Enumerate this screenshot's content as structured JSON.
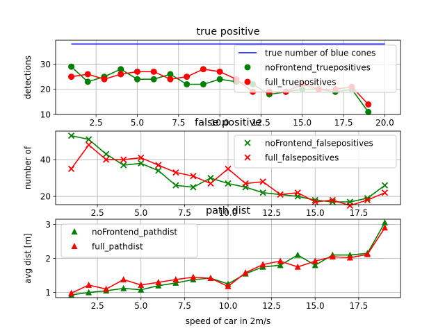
{
  "figure": {
    "xlabel": "speed of car in 2m/s"
  },
  "chart_data": [
    {
      "type": "line",
      "title": "true positive",
      "xlabel": "",
      "ylabel": "detections",
      "xlim": [
        0.05,
        20.95
      ],
      "ylim": [
        10,
        39.5
      ],
      "xticks": [
        2.5,
        5.0,
        7.5,
        10.0,
        12.5,
        15.0,
        17.5,
        20.0
      ],
      "xtick_labels": [
        "2.5",
        "5.0",
        "7.5",
        "10.0",
        "12.5",
        "15.0",
        "17.5",
        "20.0"
      ],
      "yticks": [
        10,
        20,
        30
      ],
      "ytick_labels": [
        "10",
        "20",
        "30"
      ],
      "grid": true,
      "legend": "top-right",
      "series": [
        {
          "name": "true number of blue cones",
          "color": "#0000ff",
          "marker": "none",
          "x": [
            1,
            20
          ],
          "values": [
            38,
            38
          ]
        },
        {
          "name": "noFrontend_truepositives",
          "color": "#008000",
          "marker": "circle",
          "x": [
            1,
            2,
            3,
            4,
            5,
            6,
            7,
            8,
            9,
            10,
            11,
            12,
            13,
            14,
            15,
            16,
            17,
            18,
            19
          ],
          "values": [
            29,
            23,
            25,
            28,
            24,
            24,
            26,
            22,
            22,
            24,
            23,
            22,
            18,
            19,
            20,
            20,
            19,
            20,
            11
          ]
        },
        {
          "name": "full_truepositives",
          "color": "#ff0000",
          "marker": "circle",
          "x": [
            1,
            2,
            3,
            4,
            5,
            6,
            7,
            8,
            9,
            10,
            11,
            12,
            13,
            14,
            15,
            16,
            17,
            18,
            19
          ],
          "values": [
            25,
            26,
            24,
            26,
            27,
            27,
            24,
            25,
            28,
            27,
            24,
            19,
            19,
            19,
            22,
            20,
            20,
            21,
            14
          ]
        }
      ]
    },
    {
      "type": "line",
      "title": "false positive",
      "xlabel": "",
      "ylabel": "number of",
      "xlim": [
        0.1,
        19.9
      ],
      "ylim": [
        15.5,
        55.5
      ],
      "xticks": [
        2.5,
        5.0,
        7.5,
        10.0,
        12.5,
        15.0,
        17.5
      ],
      "xtick_labels": [
        "2.5",
        "5.0",
        "7.5",
        "10.0",
        "12.5",
        "15.0",
        "17.5"
      ],
      "yticks": [
        20,
        40
      ],
      "ytick_labels": [
        "20",
        "40"
      ],
      "grid": true,
      "legend": "top-right",
      "series": [
        {
          "name": "noFrontend_falsepositives",
          "color": "#008000",
          "marker": "x",
          "x": [
            1,
            2,
            3,
            4,
            5,
            6,
            7,
            8,
            9,
            10,
            11,
            12,
            13,
            14,
            15,
            16,
            17,
            18,
            19
          ],
          "values": [
            53,
            51,
            43,
            37,
            38,
            34,
            26,
            25,
            30,
            27,
            25,
            22,
            21,
            20,
            18,
            17,
            17,
            19,
            26
          ]
        },
        {
          "name": "full_falsepositives",
          "color": "#ff0000",
          "marker": "x",
          "x": [
            1,
            2,
            3,
            4,
            5,
            6,
            7,
            8,
            9,
            10,
            11,
            12,
            13,
            14,
            15,
            16,
            17,
            18,
            19
          ],
          "values": [
            35,
            48,
            40,
            40,
            41,
            37,
            33,
            31,
            27,
            35,
            27,
            28,
            21,
            22,
            17,
            18,
            15,
            18,
            22
          ]
        }
      ]
    },
    {
      "type": "line",
      "title": "path dist",
      "xlabel": "speed of car in 2m/s",
      "ylabel": "avg dist [m]",
      "xlim": [
        0.1,
        19.9
      ],
      "ylim": [
        0.85,
        3.15
      ],
      "xticks": [
        2.5,
        5.0,
        7.5,
        10.0,
        12.5,
        15.0,
        17.5
      ],
      "xtick_labels": [
        "2.5",
        "5.0",
        "7.5",
        "10.0",
        "12.5",
        "15.0",
        "17.5"
      ],
      "yticks": [
        1,
        2,
        3
      ],
      "ytick_labels": [
        "1",
        "2",
        "3"
      ],
      "grid": true,
      "legend": "top-left",
      "series": [
        {
          "name": "noFrontend_pathdist",
          "color": "#008000",
          "marker": "triangle",
          "x": [
            1,
            2,
            3,
            4,
            5,
            6,
            7,
            8,
            9,
            10,
            11,
            12,
            13,
            14,
            15,
            16,
            17,
            18,
            19
          ],
          "values": [
            0.93,
            1.0,
            1.05,
            1.12,
            1.08,
            1.2,
            1.28,
            1.38,
            1.42,
            1.25,
            1.55,
            1.75,
            1.8,
            2.1,
            1.8,
            2.1,
            2.1,
            2.15,
            3.05
          ]
        },
        {
          "name": "full_pathdist",
          "color": "#ff0000",
          "marker": "triangle",
          "x": [
            1,
            2,
            3,
            4,
            5,
            6,
            7,
            8,
            9,
            10,
            11,
            12,
            13,
            14,
            15,
            16,
            17,
            18,
            19
          ],
          "values": [
            0.98,
            1.22,
            1.1,
            1.38,
            1.22,
            1.3,
            1.38,
            1.45,
            1.42,
            1.18,
            1.58,
            1.82,
            1.92,
            1.75,
            1.92,
            2.05,
            2.02,
            2.12,
            2.9
          ]
        }
      ]
    }
  ]
}
